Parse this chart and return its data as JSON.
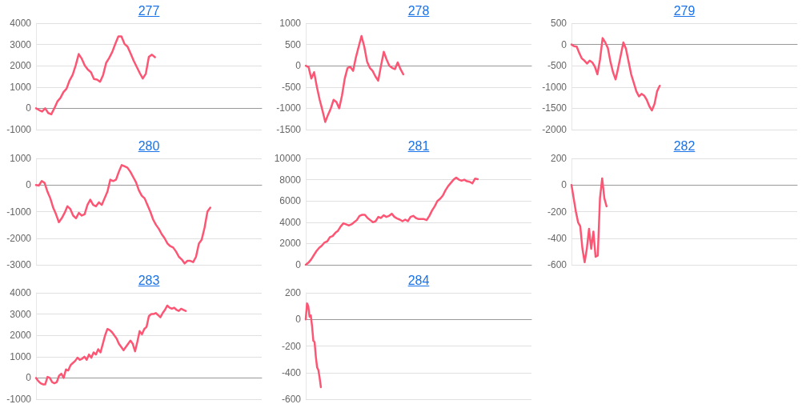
{
  "chart_data": [
    {
      "type": "line",
      "title": "277",
      "tick_labels": "y",
      "grid": "y",
      "ylim": [
        -1000,
        4000
      ],
      "yticks": [
        -1000,
        0,
        1000,
        2000,
        3000,
        4000
      ],
      "categories": [
        null,
        null,
        null,
        null,
        null,
        null,
        null,
        null,
        null,
        null,
        null,
        null,
        null,
        null,
        null,
        null,
        null,
        null,
        null,
        null,
        null,
        null,
        null,
        null,
        null,
        null,
        null,
        null,
        null,
        null,
        null,
        null,
        null,
        null,
        null,
        null,
        null,
        null,
        null,
        null,
        null,
        null,
        null,
        null,
        null,
        null,
        null,
        null,
        null,
        null,
        null,
        null,
        null,
        null,
        null,
        null,
        null,
        null,
        null,
        null,
        null,
        null,
        null,
        null,
        null,
        null,
        null,
        null,
        null,
        null,
        null,
        null,
        null,
        null,
        null
      ],
      "series": [
        {
          "color": "#fc5674",
          "values": [
            0,
            -80,
            -150,
            0,
            -220,
            -280,
            0,
            320,
            490,
            760,
            920,
            1310,
            1570,
            2010,
            2550,
            2330,
            2010,
            1820,
            1700,
            1380,
            1350,
            1250,
            1570,
            2140,
            2370,
            2650,
            3030,
            3380,
            3380,
            3030,
            2900,
            2580,
            2240,
            1950,
            1660,
            1400,
            1630,
            2420,
            2520,
            2400,
            null,
            null,
            null,
            null,
            null,
            null,
            null,
            null,
            null,
            null,
            null,
            null,
            null,
            null,
            null,
            null,
            null,
            null,
            null,
            null,
            null,
            null,
            null,
            null,
            null,
            null,
            null,
            null,
            null,
            null,
            null,
            null,
            null,
            null,
            null
          ]
        }
      ]
    },
    {
      "type": "line",
      "title": "278",
      "tick_labels": "y",
      "grid": "y",
      "ylim": [
        -1500,
        1000
      ],
      "yticks": [
        -1500,
        -1000,
        -500,
        0,
        500,
        1000
      ],
      "categories": [
        null,
        null,
        null,
        null,
        null,
        null,
        null,
        null,
        null,
        null,
        null,
        null,
        null,
        null,
        null,
        null,
        null,
        null,
        null,
        null,
        null,
        null,
        null,
        null,
        null,
        null,
        null,
        null,
        null,
        null,
        null,
        null,
        null,
        null,
        null,
        null,
        null,
        null,
        null,
        null,
        null,
        null,
        null,
        null,
        null,
        null,
        null,
        null,
        null,
        null,
        null,
        null,
        null,
        null,
        null,
        null,
        null,
        null,
        null,
        null,
        null,
        null,
        null,
        null,
        null,
        null,
        null,
        null,
        null,
        null,
        null,
        null,
        null,
        null,
        null,
        null,
        null,
        null,
        null,
        null,
        null,
        null
      ],
      "series": [
        {
          "color": "#fc5674",
          "values": [
            0,
            -30,
            -300,
            -150,
            -500,
            -800,
            -1050,
            -1320,
            -1150,
            -1000,
            -800,
            -850,
            -1000,
            -700,
            -300,
            -50,
            -30,
            -120,
            200,
            450,
            700,
            450,
            100,
            -50,
            -120,
            -250,
            -350,
            0,
            330,
            150,
            0,
            -50,
            -80,
            80,
            -80,
            -200,
            null,
            null,
            null,
            null,
            null,
            null,
            null,
            null,
            null,
            null,
            null,
            null,
            null,
            null,
            null,
            null,
            null,
            null,
            null,
            null,
            null,
            null,
            null,
            null,
            null,
            null,
            null,
            null,
            null,
            null,
            null,
            null,
            null,
            null,
            null,
            null,
            null,
            null,
            null,
            null,
            null,
            null,
            null,
            null,
            null,
            null
          ]
        }
      ]
    },
    {
      "type": "line",
      "title": "279",
      "tick_labels": "y",
      "grid": "y",
      "ylim": [
        -2000,
        500
      ],
      "yticks": [
        -2000,
        -1500,
        -1000,
        -500,
        0,
        500
      ],
      "categories": [
        null,
        null,
        null,
        null,
        null,
        null,
        null,
        null,
        null,
        null,
        null,
        null,
        null,
        null,
        null,
        null,
        null,
        null,
        null,
        null,
        null,
        null,
        null,
        null,
        null,
        null,
        null,
        null,
        null,
        null,
        null,
        null,
        null,
        null,
        null,
        null,
        null,
        null,
        null,
        null,
        null,
        null,
        null,
        null,
        null,
        null,
        null,
        null,
        null,
        null,
        null,
        null,
        null,
        null,
        null,
        null,
        null,
        null,
        null,
        null,
        null,
        null,
        null,
        null,
        null,
        null,
        null,
        null,
        null,
        null,
        null,
        null,
        null,
        null,
        null,
        null,
        null,
        null,
        null,
        null,
        null,
        null,
        null,
        null,
        null,
        null,
        null,
        null
      ],
      "series": [
        {
          "color": "#fc5674",
          "values": [
            0,
            -40,
            -50,
            -200,
            -330,
            -380,
            -450,
            -380,
            -420,
            -520,
            -700,
            -350,
            150,
            50,
            -80,
            -400,
            -650,
            -820,
            -550,
            -250,
            50,
            -100,
            -400,
            -700,
            -900,
            -1100,
            -1220,
            -1160,
            -1200,
            -1300,
            -1450,
            -1550,
            -1400,
            -1100,
            -970,
            null,
            null,
            null,
            null,
            null,
            null,
            null,
            null,
            null,
            null,
            null,
            null,
            null,
            null,
            null,
            null,
            null,
            null,
            null,
            null,
            null,
            null,
            null,
            null,
            null,
            null,
            null,
            null,
            null,
            null,
            null,
            null,
            null,
            null,
            null,
            null,
            null,
            null,
            null,
            null,
            null,
            null,
            null,
            null,
            null,
            null,
            null,
            null,
            null,
            null,
            null,
            null,
            null
          ]
        }
      ]
    },
    {
      "type": "line",
      "title": "280",
      "tick_labels": "y",
      "grid": "y",
      "ylim": [
        -3000,
        1000
      ],
      "yticks": [
        -3000,
        -2000,
        -1000,
        0,
        1000
      ],
      "categories": [
        null,
        null,
        null,
        null,
        null,
        null,
        null,
        null,
        null,
        null,
        null,
        null,
        null,
        null,
        null,
        null,
        null,
        null,
        null,
        null,
        null,
        null,
        null,
        null,
        null,
        null,
        null,
        null,
        null,
        null,
        null,
        null,
        null,
        null,
        null,
        null,
        null,
        null,
        null,
        null,
        null,
        null,
        null,
        null,
        null,
        null,
        null,
        null,
        null,
        null,
        null,
        null,
        null,
        null,
        null,
        null,
        null,
        null,
        null,
        null,
        null,
        null,
        null,
        null,
        null,
        null,
        null,
        null,
        null,
        null,
        null,
        null,
        null,
        null,
        null,
        null,
        null,
        null,
        null,
        null
      ],
      "series": [
        {
          "color": "#fc5674",
          "values": [
            0,
            -20,
            150,
            80,
            -250,
            -500,
            -850,
            -1100,
            -1400,
            -1250,
            -1050,
            -800,
            -900,
            -1150,
            -1250,
            -1050,
            -1150,
            -1100,
            -750,
            -550,
            -750,
            -800,
            -650,
            -750,
            -500,
            -250,
            200,
            150,
            200,
            500,
            750,
            700,
            650,
            500,
            300,
            100,
            -200,
            -400,
            -500,
            -750,
            -1000,
            -1300,
            -1500,
            -1650,
            -1850,
            -2000,
            -2200,
            -2300,
            -2350,
            -2500,
            -2700,
            -2800,
            -2950,
            -2850,
            -2850,
            -2900,
            -2700,
            -2200,
            -2050,
            -1600,
            -1000,
            -850,
            null,
            null,
            null,
            null,
            null,
            null,
            null,
            null,
            null,
            null,
            null,
            null,
            null,
            null,
            null,
            null,
            null,
            null
          ]
        }
      ]
    },
    {
      "type": "line",
      "title": "281",
      "tick_labels": "y",
      "grid": "y",
      "ylim": [
        0,
        10000
      ],
      "yticks": [
        0,
        2000,
        4000,
        6000,
        8000,
        10000
      ],
      "categories": [
        null,
        null,
        null,
        null,
        null,
        null,
        null,
        null,
        null,
        null,
        null,
        null,
        null,
        null,
        null,
        null,
        null,
        null,
        null,
        null,
        null,
        null,
        null,
        null,
        null,
        null,
        null,
        null,
        null,
        null,
        null,
        null,
        null,
        null,
        null,
        null,
        null,
        null,
        null,
        null,
        null,
        null,
        null,
        null,
        null,
        null,
        null,
        null,
        null,
        null,
        null,
        null,
        null,
        null,
        null,
        null,
        null,
        null,
        null,
        null,
        null,
        null,
        null,
        null,
        null,
        null,
        null,
        null,
        null,
        null,
        null,
        null,
        null,
        null,
        null,
        null,
        null,
        null,
        null,
        null,
        null,
        null,
        null,
        null,
        null
      ],
      "series": [
        {
          "color": "#fc5674",
          "values": [
            0,
            200,
            500,
            900,
            1300,
            1600,
            1800,
            2100,
            2200,
            2600,
            2700,
            3000,
            3200,
            3600,
            3900,
            3800,
            3700,
            3800,
            4000,
            4200,
            4600,
            4700,
            4700,
            4400,
            4200,
            4000,
            4100,
            4500,
            4400,
            4650,
            4500,
            4600,
            4800,
            4500,
            4350,
            4250,
            4100,
            4250,
            4100,
            4500,
            4600,
            4400,
            4300,
            4300,
            4300,
            4200,
            4600,
            5100,
            5500,
            6000,
            6200,
            6500,
            7000,
            7400,
            7700,
            8000,
            8200,
            8000,
            7900,
            8000,
            7850,
            7800,
            7650,
            8100,
            8050,
            null,
            null,
            null,
            null,
            null,
            null,
            null,
            null,
            null,
            null,
            null,
            null,
            null,
            null,
            null,
            null,
            null,
            null,
            null,
            null
          ]
        }
      ]
    },
    {
      "type": "line",
      "title": "282",
      "tick_labels": "y",
      "grid": "y",
      "ylim": [
        -600,
        200
      ],
      "yticks": [
        -600,
        -400,
        -200,
        0,
        200
      ],
      "categories": [
        null,
        null,
        null,
        null,
        null,
        null,
        null,
        null,
        null,
        null,
        null,
        null,
        null,
        null,
        null,
        null,
        null,
        null,
        null,
        null,
        null,
        null,
        null,
        null,
        null,
        null,
        null,
        null,
        null,
        null,
        null,
        null,
        null,
        null,
        null,
        null,
        null,
        null,
        null,
        null,
        null,
        null,
        null,
        null,
        null,
        null,
        null,
        null,
        null,
        null,
        null,
        null,
        null,
        null,
        null,
        null,
        null,
        null,
        null,
        null,
        null,
        null,
        null,
        null,
        null,
        null,
        null,
        null,
        null,
        null,
        null,
        null,
        null,
        null,
        null,
        null,
        null,
        null,
        null,
        null,
        null,
        null,
        null,
        null,
        null,
        null,
        null,
        null,
        null,
        null,
        null,
        null,
        null,
        null,
        null,
        null,
        null,
        null,
        null,
        null,
        null,
        null,
        null,
        null
      ],
      "series": [
        {
          "color": "#fc5674",
          "values": [
            0,
            -100,
            -200,
            -280,
            -310,
            -480,
            -580,
            -480,
            -330,
            -480,
            -350,
            -540,
            -530,
            -100,
            50,
            -100,
            -160,
            null,
            null,
            null,
            null,
            null,
            null,
            null,
            null,
            null,
            null,
            null,
            null,
            null,
            null,
            null,
            null,
            null,
            null,
            null,
            null,
            null,
            null,
            null,
            null,
            null,
            null,
            null,
            null,
            null,
            null,
            null,
            null,
            null,
            null,
            null,
            null,
            null,
            null,
            null,
            null,
            null,
            null,
            null,
            null,
            null,
            null,
            null,
            null,
            null,
            null,
            null,
            null,
            null,
            null,
            null,
            null,
            null,
            null,
            null,
            null,
            null,
            null,
            null,
            null,
            null,
            null,
            null,
            null,
            null,
            null,
            null,
            null,
            null,
            null,
            null,
            null,
            null,
            null,
            null,
            null,
            null,
            null,
            null,
            null,
            null,
            null,
            null
          ]
        }
      ]
    },
    {
      "type": "line",
      "title": "283",
      "tick_labels": "y",
      "grid": "y",
      "ylim": [
        -1000,
        4000
      ],
      "yticks": [
        -1000,
        0,
        1000,
        2000,
        3000,
        4000
      ],
      "categories": [
        null,
        null,
        null,
        null,
        null,
        null,
        null,
        null,
        null,
        null,
        null,
        null,
        null,
        null,
        null,
        null,
        null,
        null,
        null,
        null,
        null,
        null,
        null,
        null,
        null,
        null,
        null,
        null,
        null,
        null,
        null,
        null,
        null,
        null,
        null,
        null,
        null,
        null,
        null,
        null,
        null,
        null,
        null,
        null,
        null,
        null,
        null,
        null,
        null,
        null,
        null,
        null,
        null,
        null,
        null,
        null,
        null,
        null,
        null,
        null,
        null,
        null,
        null,
        null,
        null,
        null,
        null,
        null,
        null,
        null,
        null,
        null,
        null,
        null,
        null,
        null,
        null,
        null,
        null,
        null,
        null,
        null,
        null,
        null,
        null,
        null,
        null,
        null,
        null,
        null,
        null,
        null,
        null,
        null,
        null,
        null,
        null,
        null,
        null
      ],
      "series": [
        {
          "color": "#fc5674",
          "values": [
            0,
            -150,
            -250,
            -300,
            -300,
            50,
            0,
            -200,
            -250,
            -200,
            100,
            200,
            0,
            400,
            350,
            600,
            700,
            800,
            950,
            850,
            900,
            1000,
            850,
            1100,
            950,
            1200,
            1100,
            1350,
            1200,
            1600,
            2000,
            2300,
            2250,
            2150,
            2000,
            1850,
            1600,
            1450,
            1300,
            1450,
            1600,
            1750,
            1600,
            1250,
            1700,
            2200,
            2050,
            2300,
            2400,
            2900,
            3000,
            3000,
            3050,
            2950,
            2850,
            3050,
            3200,
            3400,
            3300,
            3250,
            3300,
            3200,
            3150,
            3250,
            3200,
            3150,
            null,
            null,
            null,
            null,
            null,
            null,
            null,
            null,
            null,
            null,
            null,
            null,
            null,
            null,
            null,
            null,
            null,
            null,
            null,
            null,
            null,
            null,
            null,
            null,
            null,
            null,
            null,
            null,
            null,
            null,
            null,
            null,
            null
          ]
        }
      ]
    },
    {
      "type": "line",
      "title": "284",
      "tick_labels": "y",
      "grid": "y",
      "ylim": [
        -600,
        200
      ],
      "yticks": [
        -600,
        -400,
        -200,
        0,
        200
      ],
      "categories": [
        null,
        null,
        null,
        null,
        null,
        null,
        null,
        null,
        null,
        null,
        null,
        null,
        null,
        null,
        null,
        null,
        null,
        null,
        null,
        null,
        null,
        null,
        null,
        null,
        null,
        null,
        null,
        null,
        null,
        null,
        null,
        null,
        null,
        null,
        null,
        null,
        null,
        null,
        null,
        null,
        null,
        null,
        null,
        null,
        null,
        null,
        null,
        null,
        null,
        null,
        null,
        null,
        null,
        null,
        null,
        null,
        null,
        null,
        null,
        null,
        null,
        null,
        null,
        null,
        null,
        null,
        null,
        null,
        null,
        null,
        null,
        null,
        null,
        null,
        null,
        null,
        null,
        null,
        null,
        null,
        null,
        null,
        null,
        null,
        null,
        null,
        null,
        null,
        null,
        null,
        null,
        null,
        null,
        null,
        null,
        null,
        null,
        null,
        null,
        null,
        null,
        null,
        null,
        null,
        null,
        null,
        null,
        null,
        null,
        null,
        null,
        null,
        null,
        null,
        null,
        null,
        null,
        null,
        null,
        null,
        null,
        null,
        null,
        null,
        null,
        null,
        null,
        null,
        null,
        null,
        null,
        null,
        null,
        null,
        null,
        null,
        null,
        null,
        null,
        null,
        null,
        null,
        null,
        null,
        null,
        null,
        null,
        null,
        null,
        null,
        null,
        null,
        null,
        null,
        null,
        null,
        null,
        null,
        null,
        null,
        null,
        null,
        null,
        null,
        null,
        null,
        null,
        null,
        null,
        null,
        null,
        null,
        null,
        null,
        null,
        null,
        null,
        null,
        null,
        null
      ],
      "series": [
        {
          "color": "#fc5674",
          "values": [
            0,
            120,
            100,
            20,
            30,
            -50,
            -160,
            -170,
            -280,
            -360,
            -380,
            -440,
            -510,
            null,
            null,
            null,
            null,
            null,
            null,
            null,
            null,
            null,
            null,
            null,
            null,
            null,
            null,
            null,
            null,
            null,
            null,
            null,
            null,
            null,
            null,
            null,
            null,
            null,
            null,
            null,
            null,
            null,
            null,
            null,
            null,
            null,
            null,
            null,
            null,
            null,
            null,
            null,
            null,
            null,
            null,
            null,
            null,
            null,
            null,
            null,
            null,
            null,
            null,
            null,
            null,
            null,
            null,
            null,
            null,
            null,
            null,
            null,
            null,
            null,
            null,
            null,
            null,
            null,
            null,
            null,
            null,
            null,
            null,
            null,
            null,
            null,
            null,
            null,
            null,
            null,
            null,
            null,
            null,
            null,
            null,
            null,
            null,
            null,
            null,
            null,
            null,
            null,
            null,
            null,
            null,
            null,
            null,
            null,
            null,
            null,
            null,
            null,
            null,
            null,
            null,
            null,
            null,
            null,
            null,
            null,
            null,
            null,
            null,
            null,
            null,
            null,
            null,
            null,
            null,
            null,
            null,
            null,
            null,
            null,
            null,
            null,
            null,
            null,
            null,
            null,
            null,
            null,
            null,
            null,
            null,
            null,
            null,
            null,
            null,
            null,
            null,
            null,
            null,
            null,
            null,
            null,
            null,
            null,
            null,
            null,
            null,
            null,
            null,
            null,
            null,
            null,
            null,
            null,
            null,
            null,
            null,
            null,
            null,
            null,
            null,
            null,
            null,
            null,
            null,
            null
          ]
        }
      ]
    }
  ]
}
